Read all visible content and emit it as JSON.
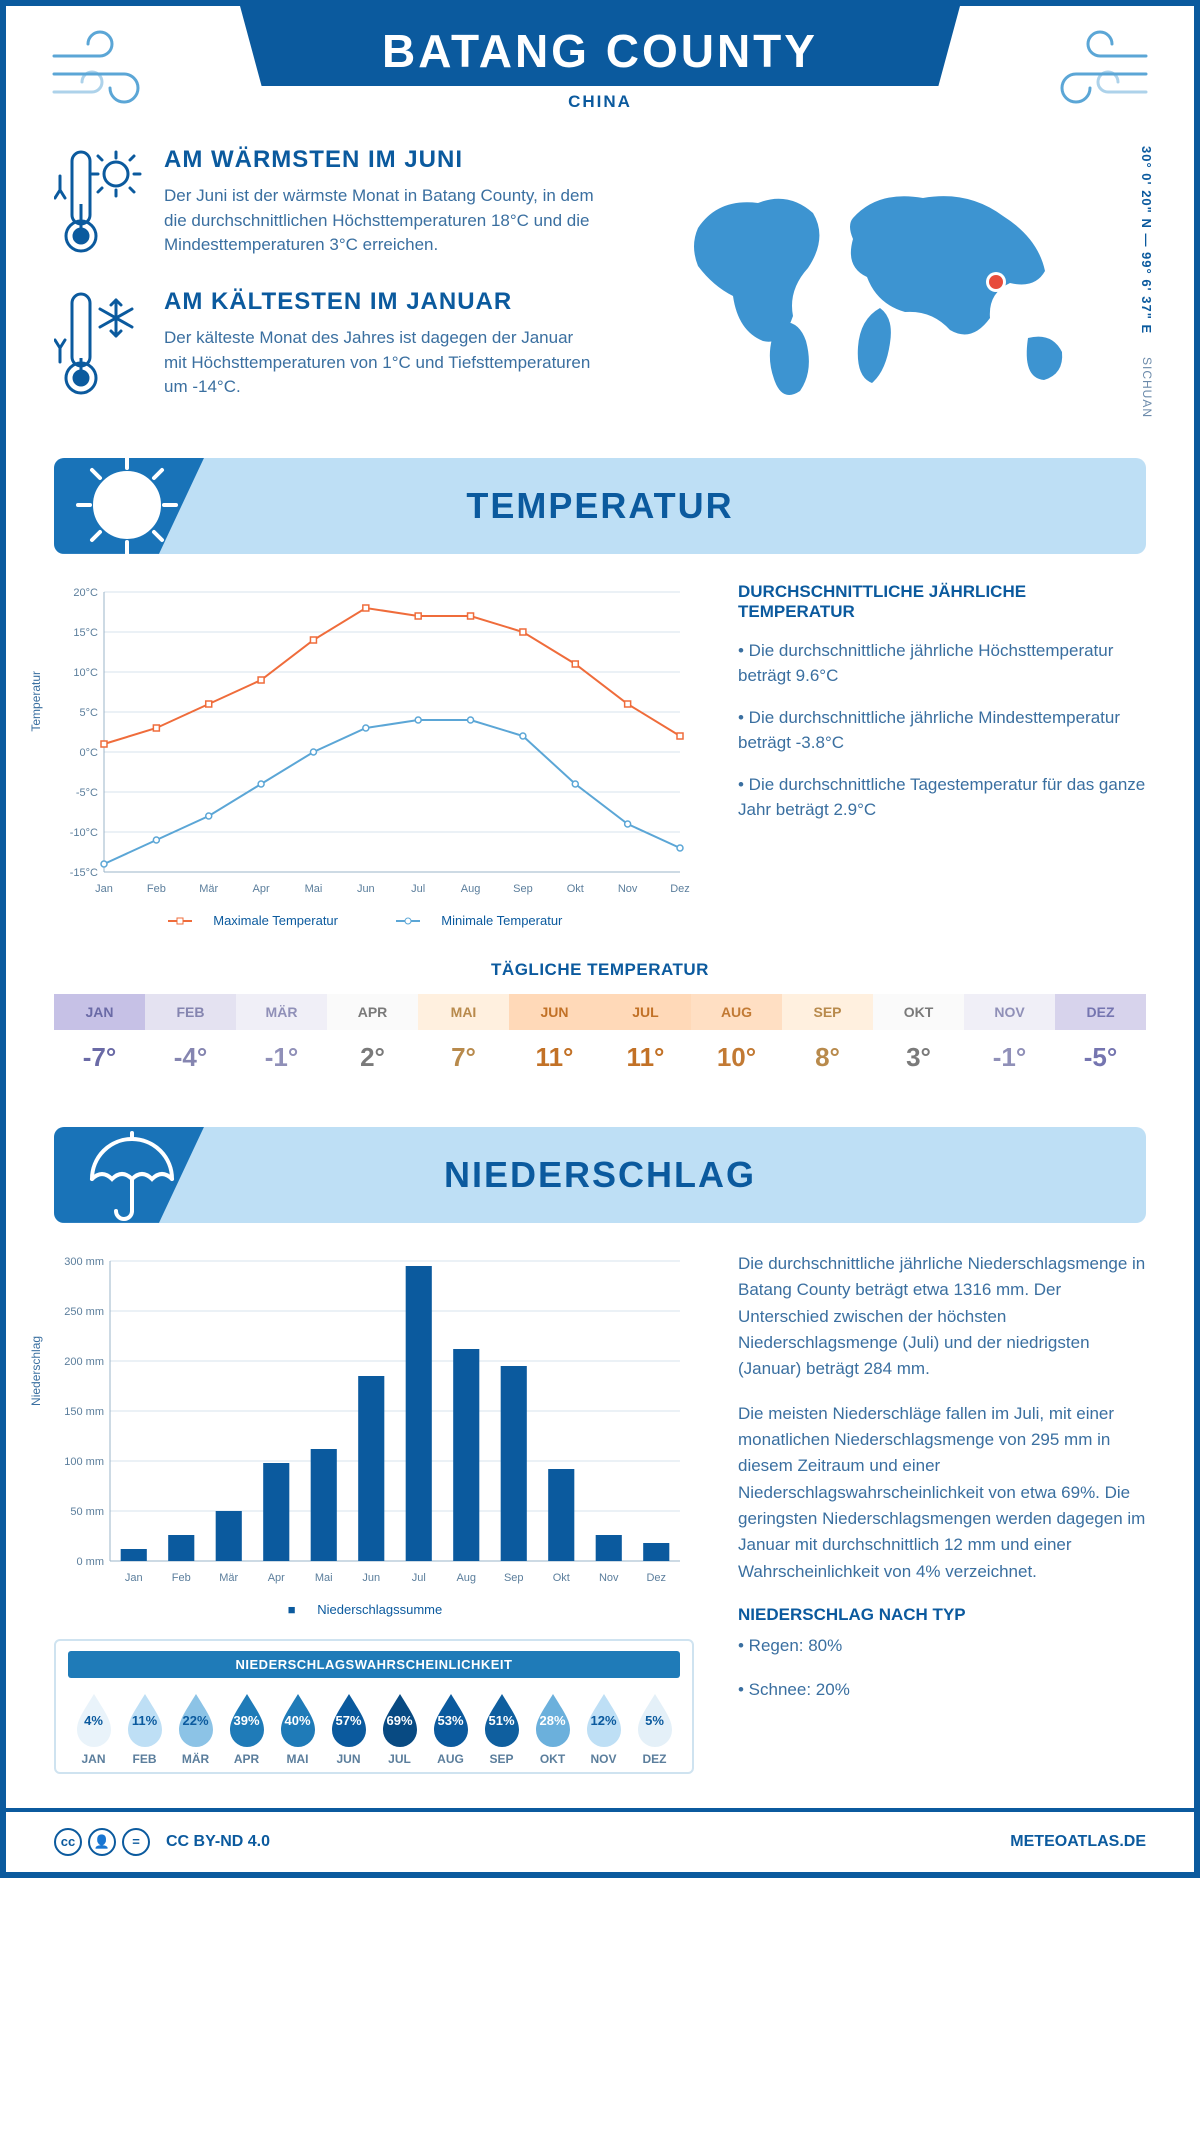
{
  "header": {
    "title": "BATANG COUNTY",
    "country": "CHINA"
  },
  "coords": "30° 0' 20\" N — 99° 6' 37\" E",
  "region": "SICHUAN",
  "intro": {
    "warm": {
      "title": "AM WÄRMSTEN IM JUNI",
      "body": "Der Juni ist der wärmste Monat in Batang County, in dem die durchschnittlichen Höchsttemperaturen 18°C und die Mindesttemperaturen 3°C erreichen."
    },
    "cold": {
      "title": "AM KÄLTESTEN IM JANUAR",
      "body": "Der kälteste Monat des Jahres ist dagegen der Januar mit Höchsttemperaturen von 1°C und Tiefsttemperaturen um -14°C."
    }
  },
  "sections": {
    "temperature": "TEMPERATUR",
    "precipitation": "NIEDERSCHLAG"
  },
  "temp_chart": {
    "type": "line",
    "months": [
      "Jan",
      "Feb",
      "Mär",
      "Apr",
      "Mai",
      "Jun",
      "Jul",
      "Aug",
      "Sep",
      "Okt",
      "Nov",
      "Dez"
    ],
    "max_series": [
      1,
      3,
      6,
      9,
      14,
      18,
      17,
      17,
      15,
      11,
      6,
      2
    ],
    "min_series": [
      -14,
      -11,
      -8,
      -4,
      0,
      3,
      4,
      4,
      2,
      -4,
      -9,
      -12
    ],
    "ylim": [
      -15,
      20
    ],
    "ytick_step": 5,
    "y_label": "Temperatur",
    "max_color": "#ef6c3b",
    "min_color": "#5ba6d6",
    "grid_color": "#d7e3ec",
    "axis_color": "#9bb4c8",
    "legend_max": "Maximale Temperatur",
    "legend_min": "Minimale Temperatur"
  },
  "temp_facts": {
    "title": "DURCHSCHNITTLICHE JÄHRLICHE TEMPERATUR",
    "items": [
      "• Die durchschnittliche jährliche Höchsttemperatur beträgt 9.6°C",
      "• Die durchschnittliche jährliche Mindesttemperatur beträgt -3.8°C",
      "• Die durchschnittliche Tagestemperatur für das ganze Jahr beträgt 2.9°C"
    ]
  },
  "daily_temp": {
    "title": "TÄGLICHE TEMPERATUR",
    "months": [
      "JAN",
      "FEB",
      "MÄR",
      "APR",
      "MAI",
      "JUN",
      "JUL",
      "AUG",
      "SEP",
      "OKT",
      "NOV",
      "DEZ"
    ],
    "values": [
      "-7°",
      "-4°",
      "-1°",
      "2°",
      "7°",
      "11°",
      "11°",
      "10°",
      "8°",
      "3°",
      "-1°",
      "-5°"
    ],
    "head_colors": [
      "#c6c1e6",
      "#e4e2f1",
      "#f0eff7",
      "#fafafa",
      "#fff0df",
      "#ffd9b8",
      "#ffd9b8",
      "#ffdfc3",
      "#fff0df",
      "#fafafa",
      "#f0eff7",
      "#d7d3ec"
    ],
    "text_colors": [
      "#6a6aa6",
      "#8585b0",
      "#9090b8",
      "#7a7a7a",
      "#b88a4c",
      "#c27126",
      "#c27126",
      "#c27a34",
      "#b88a4c",
      "#7a7a7a",
      "#9090b8",
      "#7575b0"
    ]
  },
  "precip_chart": {
    "type": "bar",
    "months": [
      "Jan",
      "Feb",
      "Mär",
      "Apr",
      "Mai",
      "Jun",
      "Jul",
      "Aug",
      "Sep",
      "Okt",
      "Nov",
      "Dez"
    ],
    "values": [
      12,
      26,
      50,
      98,
      112,
      185,
      295,
      212,
      195,
      92,
      26,
      18
    ],
    "ylim": [
      0,
      300
    ],
    "ytick_step": 50,
    "y_label": "Niederschlag",
    "bar_color": "#0b5a9e",
    "grid_color": "#d7e3ec",
    "axis_color": "#9bb4c8",
    "legend": "Niederschlagssumme"
  },
  "precip_text": {
    "p1": "Die durchschnittliche jährliche Niederschlagsmenge in Batang County beträgt etwa 1316 mm. Der Unterschied zwischen der höchsten Niederschlagsmenge (Juli) und der niedrigsten (Januar) beträgt 284 mm.",
    "p2": "Die meisten Niederschläge fallen im Juli, mit einer monatlichen Niederschlagsmenge von 295 mm in diesem Zeitraum und einer Niederschlagswahrscheinlichkeit von etwa 69%. Die geringsten Niederschlagsmengen werden dagegen im Januar mit durchschnittlich 12 mm und einer Wahrscheinlichkeit von 4% verzeichnet.",
    "by_type_title": "NIEDERSCHLAG NACH TYP",
    "by_type_items": [
      "• Regen: 80%",
      "• Schnee: 20%"
    ]
  },
  "precip_prob": {
    "title": "NIEDERSCHLAGSWAHRSCHEINLICHKEIT",
    "months": [
      "JAN",
      "FEB",
      "MÄR",
      "APR",
      "MAI",
      "JUN",
      "JUL",
      "AUG",
      "SEP",
      "OKT",
      "NOV",
      "DEZ"
    ],
    "pct": [
      "4%",
      "11%",
      "22%",
      "39%",
      "40%",
      "57%",
      "69%",
      "53%",
      "51%",
      "28%",
      "12%",
      "5%"
    ],
    "colors": [
      "#e9f3fa",
      "#bedff5",
      "#8cc3e6",
      "#1f7bb8",
      "#1f7bb8",
      "#0b5a9e",
      "#084a82",
      "#0b5a9e",
      "#0f5f9f",
      "#6bb0dc",
      "#bedff5",
      "#e4f0f8"
    ],
    "light_text": [
      true,
      true,
      true,
      false,
      false,
      false,
      false,
      false,
      false,
      false,
      true,
      true
    ]
  },
  "footer": {
    "license": "CC BY-ND 4.0",
    "site": "METEOATLAS.DE"
  }
}
